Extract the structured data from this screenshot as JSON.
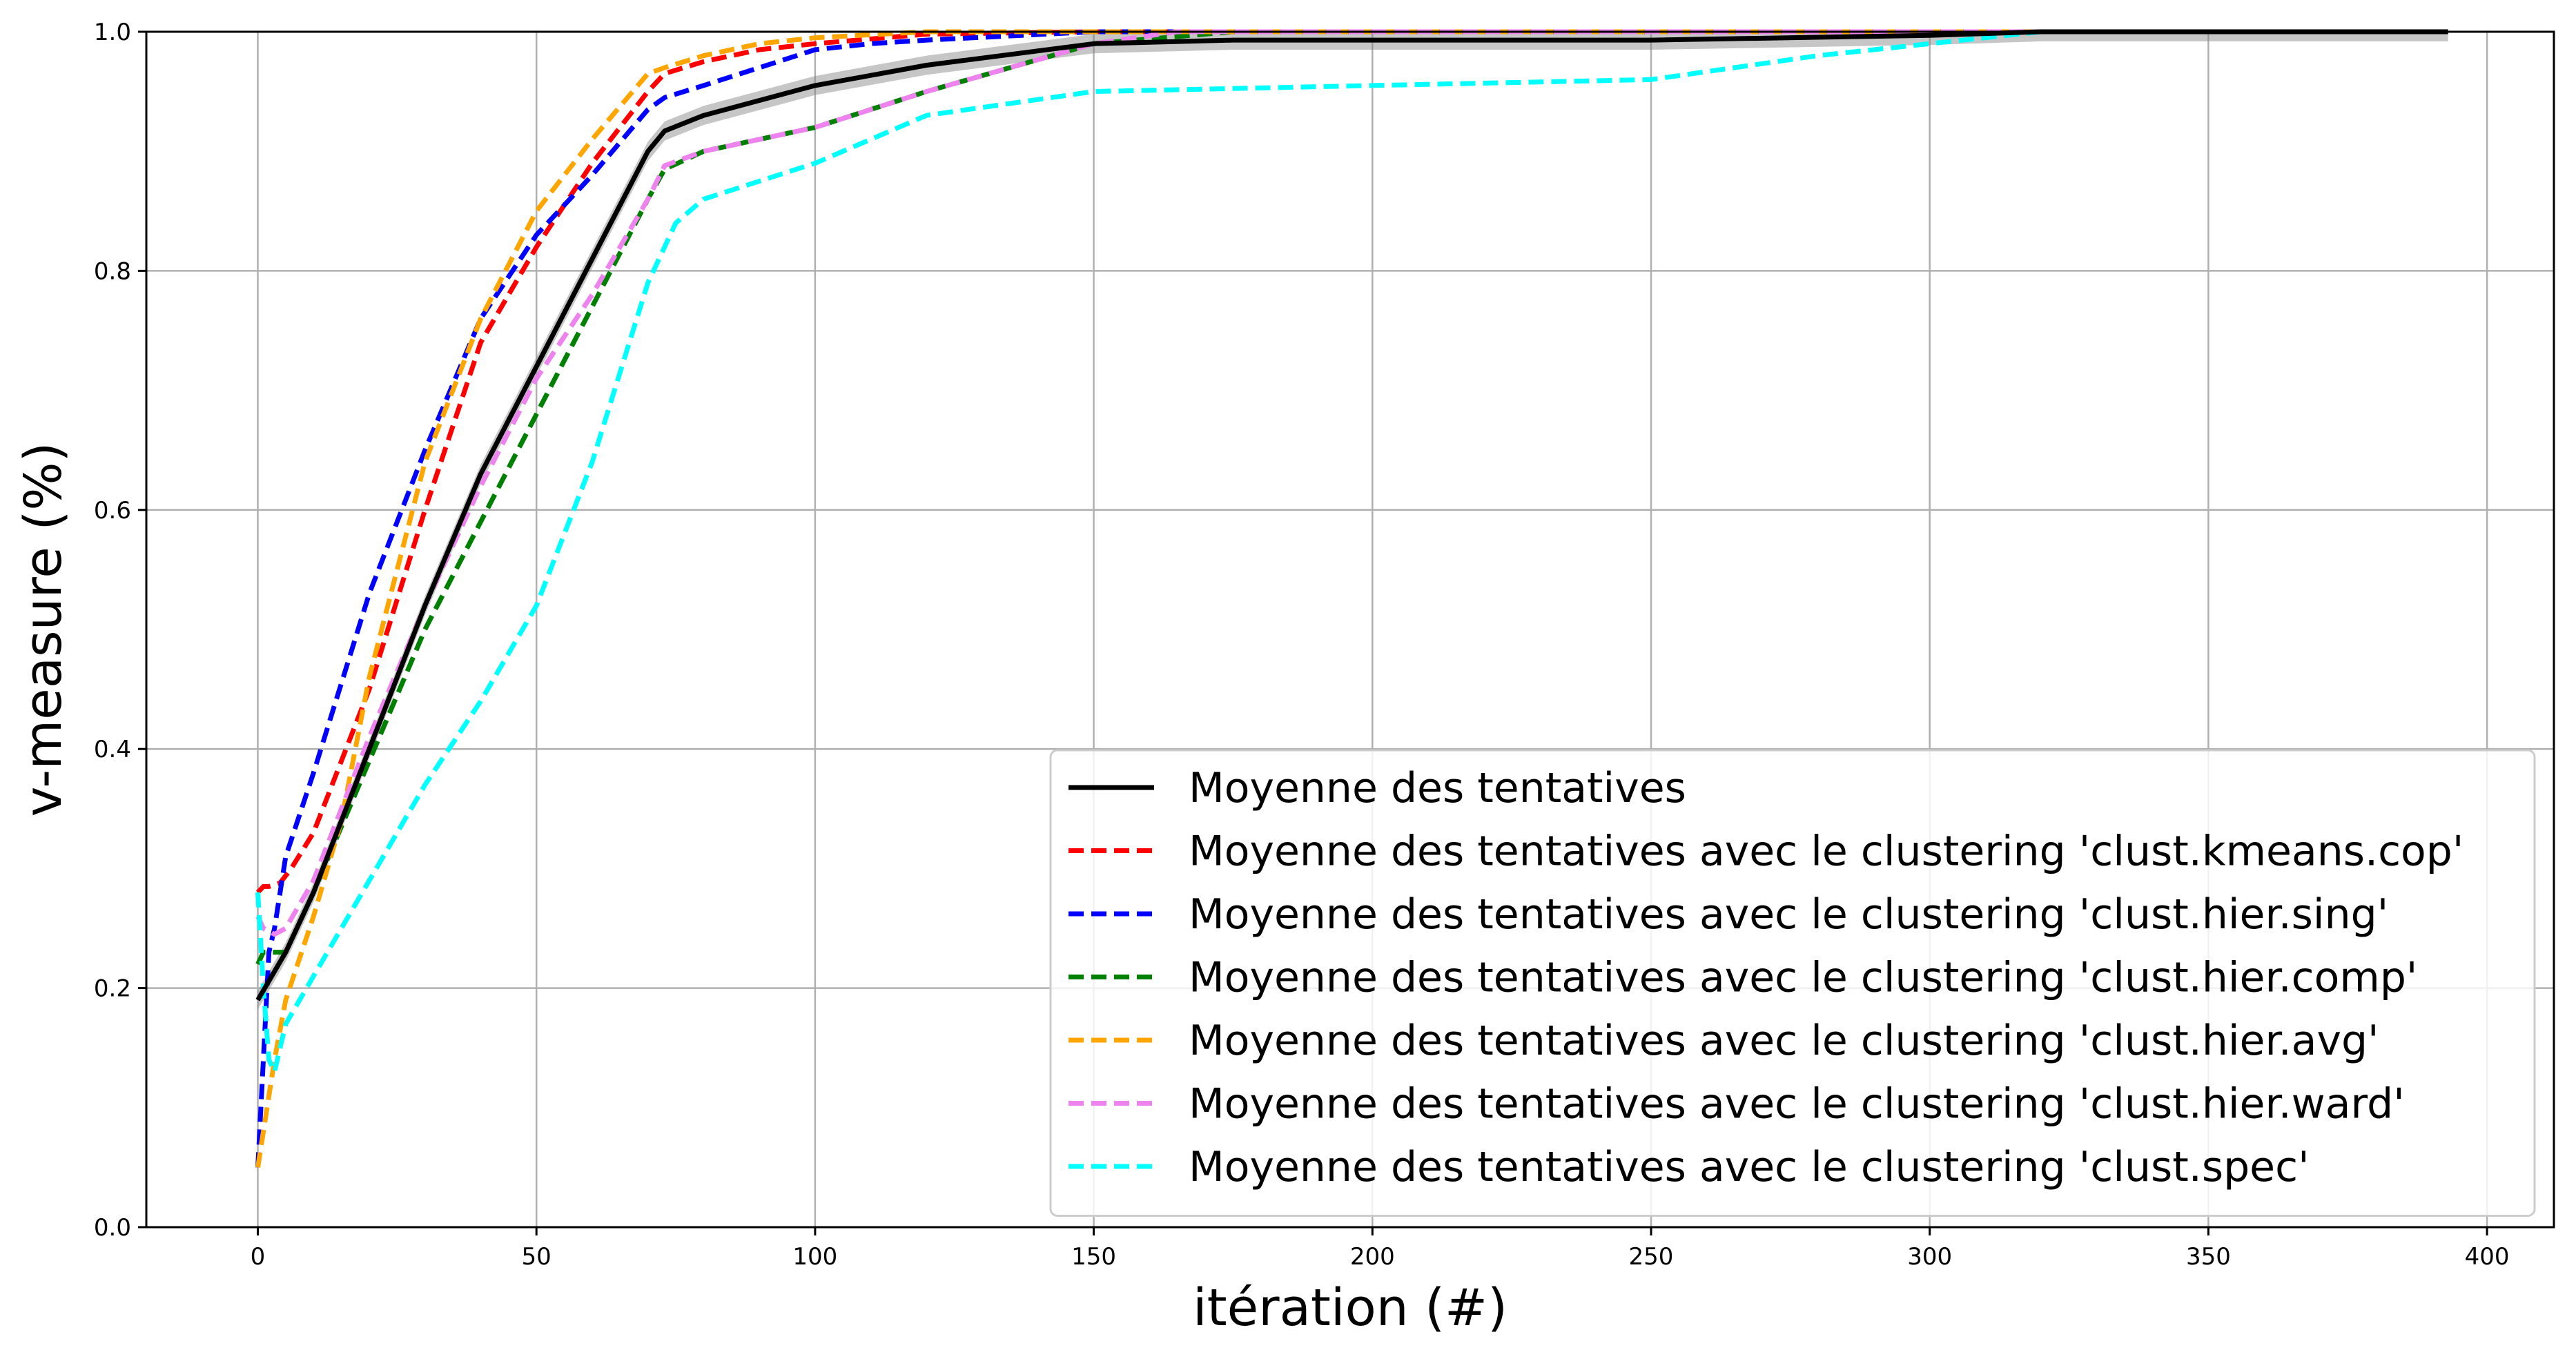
{
  "chart_data": {
    "type": "line",
    "xlabel": "itération (#)",
    "ylabel": "v-measure (%)",
    "xlim": [
      -20,
      412
    ],
    "ylim": [
      0.0,
      1.0
    ],
    "xticks": [
      0,
      50,
      100,
      150,
      200,
      250,
      300,
      350,
      400
    ],
    "yticks": [
      0.0,
      0.2,
      0.4,
      0.6,
      0.8,
      1.0
    ],
    "xtick_labels": [
      "0",
      "50",
      "100",
      "150",
      "200",
      "250",
      "300",
      "350",
      "400"
    ],
    "ytick_labels": [
      "0.0",
      "0.2",
      "0.4",
      "0.6",
      "0.8",
      "1.0"
    ],
    "grid": true,
    "legend_position": "lower-right",
    "series": [
      {
        "name": "Moyenne des tentatives",
        "color": "#000000",
        "dash": "solid",
        "band": true,
        "x": [
          0,
          5,
          10,
          20,
          30,
          40,
          50,
          60,
          70,
          73,
          80,
          100,
          120,
          150,
          175,
          200,
          250,
          300,
          320,
          393
        ],
        "y": [
          0.19,
          0.23,
          0.28,
          0.4,
          0.52,
          0.63,
          0.72,
          0.81,
          0.9,
          0.917,
          0.93,
          0.955,
          0.972,
          0.99,
          0.993,
          0.993,
          0.993,
          0.997,
          1.0,
          1.0
        ]
      },
      {
        "name": "Moyenne des tentatives avec le clustering 'clust.kmeans.cop'",
        "color": "#ff0000",
        "dash": "dashed",
        "x": [
          0,
          1,
          2,
          4,
          6,
          10,
          20,
          30,
          40,
          50,
          60,
          70,
          73,
          80,
          90,
          100,
          120,
          150,
          393
        ],
        "y": [
          0.28,
          0.285,
          0.285,
          0.288,
          0.3,
          0.33,
          0.45,
          0.6,
          0.74,
          0.82,
          0.89,
          0.95,
          0.965,
          0.975,
          0.985,
          0.99,
          0.998,
          1.0,
          1.0
        ]
      },
      {
        "name": "Moyenne des tentatives avec le clustering 'clust.hier.sing'",
        "color": "#0000ff",
        "dash": "dashed",
        "x": [
          0,
          2,
          3,
          5,
          10,
          20,
          30,
          40,
          50,
          60,
          70,
          73,
          80,
          90,
          100,
          110,
          120,
          150,
          393
        ],
        "y": [
          0.05,
          0.23,
          0.25,
          0.31,
          0.38,
          0.53,
          0.65,
          0.76,
          0.83,
          0.88,
          0.935,
          0.945,
          0.955,
          0.97,
          0.985,
          0.99,
          0.993,
          1.0,
          1.0
        ]
      },
      {
        "name": "Moyenne des tentatives avec le clustering 'clust.hier.comp'",
        "color": "#008000",
        "dash": "dashed",
        "x": [
          0,
          1,
          3,
          5,
          10,
          20,
          30,
          40,
          50,
          60,
          70,
          73,
          80,
          100,
          120,
          150,
          175,
          393
        ],
        "y": [
          0.22,
          0.23,
          0.23,
          0.23,
          0.28,
          0.39,
          0.5,
          0.59,
          0.68,
          0.77,
          0.86,
          0.885,
          0.9,
          0.92,
          0.95,
          0.99,
          1.0,
          1.0
        ]
      },
      {
        "name": "Moyenne des tentatives avec le clustering 'clust.hier.avg'",
        "color": "#ffa500",
        "dash": "dashed",
        "x": [
          0,
          3,
          5,
          10,
          15,
          20,
          30,
          40,
          50,
          60,
          70,
          73,
          80,
          90,
          100,
          120,
          393
        ],
        "y": [
          0.05,
          0.14,
          0.19,
          0.26,
          0.34,
          0.46,
          0.64,
          0.76,
          0.85,
          0.91,
          0.965,
          0.97,
          0.98,
          0.99,
          0.995,
          1.0,
          1.0
        ]
      },
      {
        "name": "Moyenne des tentatives avec le clustering 'clust.hier.ward'",
        "color": "#ee82ee",
        "dash": "dashed",
        "x": [
          0,
          1,
          3,
          5,
          10,
          20,
          30,
          40,
          50,
          60,
          70,
          73,
          80,
          100,
          120,
          150,
          165,
          393
        ],
        "y": [
          0.26,
          0.25,
          0.245,
          0.25,
          0.29,
          0.41,
          0.52,
          0.62,
          0.71,
          0.78,
          0.86,
          0.888,
          0.9,
          0.92,
          0.95,
          0.99,
          1.0,
          1.0
        ]
      },
      {
        "name": "Moyenne des tentatives avec le clustering 'clust.spec'",
        "color": "#00ffff",
        "dash": "dashed",
        "x": [
          0,
          1,
          2,
          3,
          5,
          10,
          20,
          30,
          40,
          50,
          60,
          70,
          75,
          80,
          100,
          120,
          150,
          200,
          250,
          280,
          300,
          320,
          393
        ],
        "y": [
          0.28,
          0.2,
          0.14,
          0.13,
          0.17,
          0.21,
          0.29,
          0.37,
          0.44,
          0.52,
          0.64,
          0.79,
          0.84,
          0.86,
          0.89,
          0.93,
          0.95,
          0.955,
          0.96,
          0.98,
          0.99,
          1.0,
          1.0
        ]
      }
    ]
  }
}
